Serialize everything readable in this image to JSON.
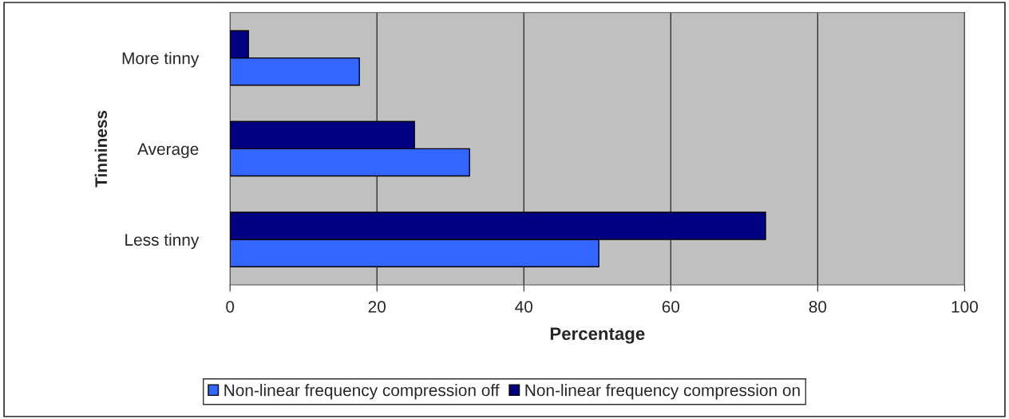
{
  "chart_data": {
    "type": "bar",
    "orientation": "horizontal",
    "xlabel": "Percentage",
    "ylabel": "Tinniness",
    "categories": [
      "More tinny",
      "Average",
      "Less tinny"
    ],
    "series": [
      {
        "name": "Non-linear frequency compression off",
        "color": "#3366ff",
        "values": [
          17.6,
          32.6,
          50.2
        ]
      },
      {
        "name": "Non-linear frequency compression on",
        "color": "#000080",
        "values": [
          2.5,
          25.1,
          72.9
        ]
      }
    ],
    "xlim": [
      0,
      100
    ],
    "xticks": [
      0,
      20,
      40,
      60,
      80,
      100
    ],
    "grid": "x",
    "legend": "bottom"
  }
}
